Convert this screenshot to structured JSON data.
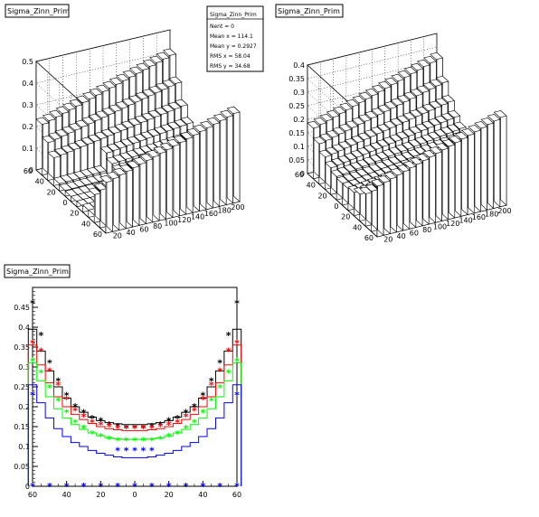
{
  "pad_titles": {
    "top_left": "Sigma_Zinn_Prim",
    "top_right": "Sigma_Zinn_Prim",
    "bottom_left": "Sigma_Zinn_Prim"
  },
  "stats_box": {
    "title": "Sigma_Zinn_Prim",
    "rows": [
      "Nent = 0",
      "Mean x = 114.1",
      "Mean y = 0.2927",
      "RMS x = 58.04",
      "RMS y = 34.68"
    ]
  },
  "colors": {
    "black": "#000000",
    "red": "#ff0000",
    "green": "#00ff00",
    "blue": "#0000ff"
  },
  "chart_data": [
    {
      "type": "lego",
      "title": "Sigma_Zinn_Prim",
      "x_ticks": [
        "20",
        "40",
        "60",
        "80",
        "100",
        "120",
        "140",
        "160",
        "180",
        "200"
      ],
      "y_ticks": [
        "60",
        "40",
        "20",
        "0",
        "20",
        "40",
        "60"
      ],
      "z_ticks": [
        "0",
        "0.1",
        "0.2",
        "0.3",
        "0.4",
        "0.5"
      ],
      "xlim": [
        0,
        200
      ],
      "ylim": [
        -60,
        60
      ],
      "zlim": [
        0,
        0.5
      ]
    },
    {
      "type": "lego",
      "title": "Sigma_Zinn_Prim",
      "x_ticks": [
        "20",
        "40",
        "60",
        "80",
        "100",
        "120",
        "140",
        "160",
        "180",
        "200"
      ],
      "y_ticks": [
        "60",
        "40",
        "20",
        "0",
        "20",
        "40",
        "60"
      ],
      "z_ticks": [
        "0",
        "0.05",
        "0.1",
        "0.15",
        "0.2",
        "0.25",
        "0.3",
        "0.35",
        "0.4"
      ],
      "xlim": [
        0,
        200
      ],
      "ylim": [
        -60,
        60
      ],
      "zlim": [
        0,
        0.45
      ]
    },
    {
      "type": "line",
      "title": "Sigma_Zinn_Prim",
      "x_ticks": [
        "60",
        "40",
        "20",
        "0",
        "20",
        "40",
        "60"
      ],
      "y_ticks": [
        "0",
        "0.05",
        "0.1",
        "0.15",
        "0.2",
        "0.25",
        "0.3",
        "0.35",
        "0.4",
        "0.45"
      ],
      "xlim": [
        -60,
        60
      ],
      "ylim": [
        0,
        0.5
      ],
      "x": [
        -60,
        -55,
        -50,
        -45,
        -40,
        -35,
        -30,
        -25,
        -20,
        -15,
        -10,
        -5,
        0,
        5,
        10,
        15,
        20,
        25,
        30,
        35,
        40,
        45,
        50,
        55,
        60
      ],
      "series": [
        {
          "color": "black",
          "hist": [
            0.395,
            0.34,
            0.29,
            0.25,
            0.222,
            0.2,
            0.186,
            0.174,
            0.165,
            0.16,
            0.157,
            0.155,
            0.155,
            0.155,
            0.157,
            0.16,
            0.165,
            0.174,
            0.186,
            0.2,
            0.222,
            0.25,
            0.29,
            0.34,
            0.395
          ],
          "markers": [
            0.46,
            0.38,
            0.31,
            0.265,
            0.228,
            0.2,
            0.185,
            0.17,
            0.165,
            0.155,
            0.15,
            0.147,
            0.147,
            0.147,
            0.15,
            0.155,
            0.165,
            0.17,
            0.185,
            0.2,
            0.228,
            0.265,
            0.31,
            0.38,
            0.46
          ]
        },
        {
          "color": "red",
          "hist": [
            0.355,
            0.305,
            0.26,
            0.225,
            0.2,
            0.181,
            0.168,
            0.158,
            0.15,
            0.145,
            0.142,
            0.14,
            0.14,
            0.14,
            0.142,
            0.145,
            0.15,
            0.158,
            0.168,
            0.181,
            0.2,
            0.225,
            0.26,
            0.305,
            0.355
          ],
          "markers": [
            0.36,
            0.34,
            0.29,
            0.255,
            0.218,
            0.19,
            0.175,
            0.16,
            0.155,
            0.15,
            0.145,
            0.145,
            0.145,
            0.145,
            0.145,
            0.15,
            0.155,
            0.16,
            0.175,
            0.19,
            0.218,
            0.255,
            0.29,
            0.34,
            0.36
          ]
        },
        {
          "color": "green",
          "hist": [
            0.31,
            0.265,
            0.225,
            0.195,
            0.172,
            0.155,
            0.143,
            0.134,
            0.127,
            0.122,
            0.119,
            0.118,
            0.118,
            0.118,
            0.119,
            0.122,
            0.127,
            0.134,
            0.143,
            0.155,
            0.172,
            0.195,
            0.225,
            0.265,
            0.31
          ],
          "markers": [
            0.315,
            0.285,
            0.248,
            0.215,
            0.185,
            0.16,
            0.145,
            0.132,
            0.125,
            0.118,
            0.115,
            0.115,
            0.115,
            0.115,
            0.115,
            0.118,
            0.125,
            0.132,
            0.145,
            0.16,
            0.185,
            0.215,
            0.248,
            0.285,
            0.315
          ]
        },
        {
          "color": "blue",
          "hist": [
            0.255,
            0.21,
            0.172,
            0.145,
            0.125,
            0.11,
            0.1,
            0.09,
            0.083,
            0.078,
            0.074,
            0.072,
            0.072,
            0.072,
            0.074,
            0.078,
            0.083,
            0.09,
            0.1,
            0.11,
            0.125,
            0.145,
            0.172,
            0.21,
            0.255
          ],
          "markers": [
            0.23,
            null,
            null,
            null,
            null,
            null,
            null,
            null,
            null,
            null,
            0.09,
            0.09,
            0.09,
            0.09,
            0.09,
            null,
            null,
            null,
            null,
            null,
            null,
            null,
            null,
            null,
            0.23
          ]
        },
        {
          "color": "blue",
          "hist": null,
          "markers": [
            0,
            null,
            0,
            null,
            0,
            null,
            0,
            null,
            0,
            null,
            0,
            null,
            0,
            null,
            0,
            null,
            0,
            null,
            0,
            null,
            0,
            null,
            0,
            null,
            0
          ]
        }
      ]
    }
  ]
}
